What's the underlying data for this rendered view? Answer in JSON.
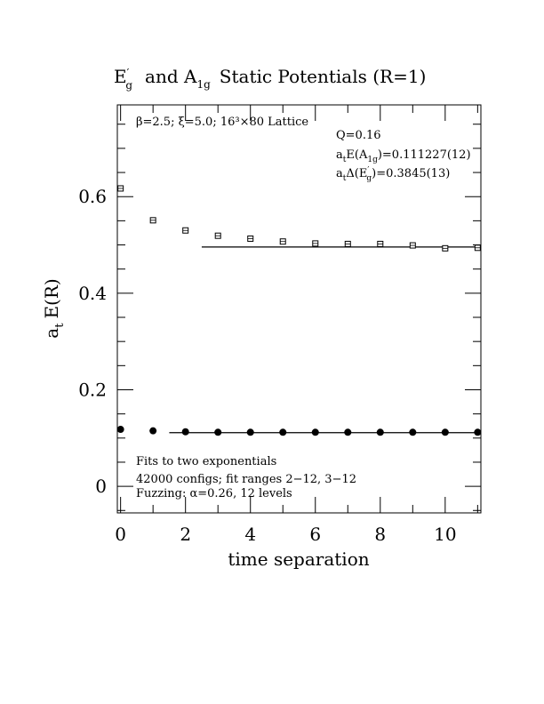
{
  "chart_data": {
    "type": "scatter",
    "title": {
      "part1_main": "E",
      "part1_sup": "′",
      "part1_sub": "g",
      "part2": "and A",
      "part2_sub": "1g",
      "part3": "Static Potentials (R=1)"
    },
    "xlabel": "time separation",
    "ylabel": {
      "main": "a",
      "sub": "t",
      "rest": "E(R)"
    },
    "xlim": [
      -0.1,
      11.1
    ],
    "ylim": [
      -0.055,
      0.79
    ],
    "x_ticks": [
      0,
      2,
      4,
      6,
      8,
      10
    ],
    "x_tick_labels": [
      "0",
      "2",
      "4",
      "6",
      "8",
      "10"
    ],
    "y_ticks": [
      0,
      0.2,
      0.4,
      0.6
    ],
    "y_tick_labels": [
      "0",
      "0.2",
      "0.4",
      "0.6"
    ],
    "annotations": {
      "lattice": "β=2.5; ξ=5.0; 16³×80 Lattice",
      "q": "Q=0.16",
      "fitA": {
        "pre": "a",
        "pre_sub": "t",
        "mid": "E(A",
        "mid_sub": "1g",
        "post": ")=0.111227(12)"
      },
      "fitE": {
        "pre": "a",
        "pre_sub": "t",
        "mid": "Δ(E",
        "mid_sup": "′",
        "mid_sub": "g",
        "post": ")=0.3845(13)"
      },
      "note1": "Fits to two exponentials",
      "note2": "42000 configs; fit ranges 2−12, 3−12",
      "note3": "Fuzzing: α=0.26, 12 levels"
    },
    "series": [
      {
        "marker": "open-square",
        "x": [
          0,
          1,
          2,
          3,
          4,
          5,
          6,
          7,
          8,
          9,
          10,
          11
        ],
        "y": [
          0.617,
          0.551,
          0.53,
          0.519,
          0.513,
          0.507,
          0.503,
          0.502,
          0.502,
          0.499,
          0.493,
          0.494
        ],
        "fit": {
          "x": [
            2.5,
            11.1
          ],
          "y": [
            0.4957,
            0.4957
          ]
        }
      },
      {
        "marker": "filled-circle",
        "x": [
          0,
          1,
          2,
          3,
          4,
          5,
          6,
          7,
          8,
          9,
          10,
          11
        ],
        "y": [
          0.118,
          0.115,
          0.113,
          0.112,
          0.112,
          0.112,
          0.112,
          0.112,
          0.112,
          0.112,
          0.112,
          0.112
        ],
        "fit": {
          "x": [
            1.5,
            11.1
          ],
          "y": [
            0.1112,
            0.1112
          ]
        }
      }
    ]
  }
}
